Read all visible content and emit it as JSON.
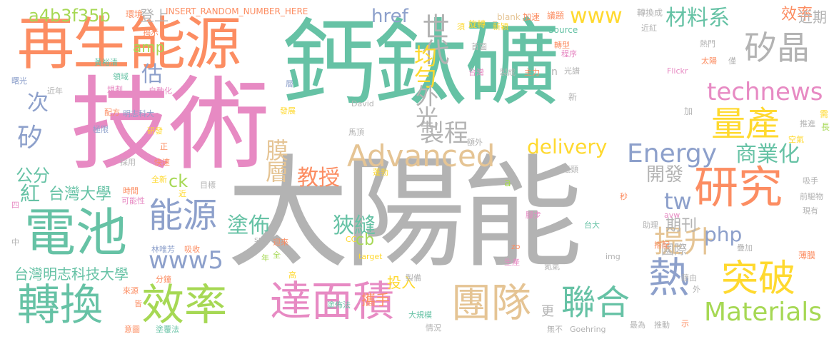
{
  "palette": {
    "gray": "#b3b3b3",
    "green": "#66c2a5",
    "orange": "#fc8d62",
    "blue": "#8da0cb",
    "pink": "#e78ac3",
    "lime": "#a6d854",
    "yellow": "#ffd92f",
    "tan": "#e5c494"
  },
  "words": [
    {
      "text": "鈣鈦礦",
      "color": "green"
    },
    {
      "text": "太陽能",
      "color": "gray"
    },
    {
      "text": "技術",
      "color": "pink"
    },
    {
      "text": "再生能源",
      "color": "orange"
    },
    {
      "text": "電池",
      "color": "green"
    },
    {
      "text": "轉換",
      "color": "green"
    },
    {
      "text": "效率",
      "color": "lime"
    },
    {
      "text": "達面積",
      "color": "pink"
    },
    {
      "text": "團隊",
      "color": "tan"
    },
    {
      "text": "聯合",
      "color": "green"
    },
    {
      "text": "研究",
      "color": "orange"
    },
    {
      "text": "突破",
      "color": "yellow"
    },
    {
      "text": "量產",
      "color": "yellow"
    },
    {
      "text": "矽晶",
      "color": "gray"
    },
    {
      "text": "熱",
      "color": "blue"
    },
    {
      "text": "提升",
      "color": "tan"
    },
    {
      "text": "能源",
      "color": "blue"
    },
    {
      "text": "Advanced",
      "color": "tan"
    },
    {
      "text": "Energy",
      "color": "blue"
    },
    {
      "text": "Materials",
      "color": "lime"
    },
    {
      "text": "technews",
      "color": "pink"
    },
    {
      "text": "delivery",
      "color": "yellow"
    },
    {
      "text": "商業化",
      "color": "green"
    },
    {
      "text": "材料系",
      "color": "green"
    },
    {
      "text": "www",
      "color": "yellow"
    },
    {
      "text": "www5",
      "color": "blue"
    },
    {
      "text": "php",
      "color": "blue"
    },
    {
      "text": "tw",
      "color": "blue"
    },
    {
      "text": "a4b3f35b",
      "color": "lime"
    },
    {
      "text": "世代",
      "color": "gray"
    },
    {
      "text": "均勻",
      "color": "yellow"
    },
    {
      "text": "外光",
      "color": "gray"
    },
    {
      "text": "製程",
      "color": "gray"
    },
    {
      "text": "膜層",
      "color": "tan"
    },
    {
      "text": "開發",
      "color": "gray"
    },
    {
      "text": "教授",
      "color": "orange"
    },
    {
      "text": "塗佈",
      "color": "green"
    },
    {
      "text": "狹縫",
      "color": "green"
    },
    {
      "text": "期刊",
      "color": "gray"
    },
    {
      "text": "國際",
      "color": "gray"
    },
    {
      "text": "台灣大學",
      "color": "green"
    },
    {
      "text": "台灣明志科技大學",
      "color": "green"
    },
    {
      "text": "公分",
      "color": "green"
    },
    {
      "text": "紅",
      "color": "green"
    },
    {
      "text": "矽",
      "color": "blue"
    },
    {
      "text": "次",
      "color": "blue"
    },
    {
      "text": "估",
      "color": "blue"
    },
    {
      "text": "登上",
      "color": "gray"
    },
    {
      "text": "href",
      "color": "blue"
    },
    {
      "text": "amp",
      "color": "lime"
    },
    {
      "text": "ck",
      "color": "lime"
    },
    {
      "text": "cb",
      "color": "lime"
    },
    {
      "text": "效率",
      "color": "orange"
    },
    {
      "text": "近期",
      "color": "gray"
    },
    {
      "text": "投入",
      "color": "yellow"
    },
    {
      "text": "攜手",
      "color": "orange"
    },
    {
      "text": "更",
      "color": "gray"
    },
    {
      "text": "INSERT_RANDOM_NUMBER_HERE",
      "color": "orange"
    },
    {
      "text": "環境",
      "color": "orange"
    },
    {
      "text": "揭示",
      "color": "orange"
    },
    {
      "text": "_blank",
      "color": "tan"
    },
    {
      "text": "旋轉",
      "color": "yellow"
    },
    {
      "text": "轉換成",
      "color": "gray"
    },
    {
      "text": "加速",
      "color": "orange"
    },
    {
      "text": "議題",
      "color": "orange"
    },
    {
      "text": "新穎",
      "color": "yellow"
    },
    {
      "text": "Source",
      "color": "green"
    },
    {
      "text": "近紅",
      "color": "gray"
    },
    {
      "text": "熱門",
      "color": "gray"
    },
    {
      "text": "轉型",
      "color": "orange"
    },
    {
      "text": "程序",
      "color": "pink"
    },
    {
      "text": "太陽",
      "color": "orange"
    },
    {
      "text": "Flickr",
      "color": "pink"
    },
    {
      "text": "僅",
      "color": "gray"
    },
    {
      "text": "台灣",
      "color": "pink"
    },
    {
      "text": "製成",
      "color": "gray"
    },
    {
      "text": "主力",
      "color": "orange"
    },
    {
      "text": "光譜",
      "color": "gray"
    },
    {
      "text": "n",
      "color": "gray"
    },
    {
      "text": "首圖",
      "color": "gray"
    },
    {
      "text": "黃裕清",
      "color": "green"
    },
    {
      "text": "領域",
      "color": "green"
    },
    {
      "text": "曙光",
      "color": "blue"
    },
    {
      "text": "近年",
      "color": "gray"
    },
    {
      "text": "規劃",
      "color": "pink"
    },
    {
      "text": "自動化",
      "color": "pink"
    },
    {
      "text": "層",
      "color": "blue"
    },
    {
      "text": "明志科大",
      "color": "blue"
    },
    {
      "text": "配方",
      "color": "orange"
    },
    {
      "text": "David",
      "color": "gray"
    },
    {
      "text": "發展",
      "color": "yellow"
    },
    {
      "text": "研發",
      "color": "yellow"
    },
    {
      "text": "極限",
      "color": "blue"
    },
    {
      "text": "馬頂",
      "color": "gray"
    },
    {
      "text": "額外",
      "color": "gray"
    },
    {
      "text": "推進",
      "color": "gray"
    },
    {
      "text": "空氣",
      "color": "yellow"
    },
    {
      "text": "需",
      "color": "yellow"
    },
    {
      "text": "長",
      "color": "lime"
    },
    {
      "text": "加",
      "color": "gray"
    },
    {
      "text": "新",
      "color": "gray"
    },
    {
      "text": "正",
      "color": "orange"
    },
    {
      "text": "快速",
      "color": "orange"
    },
    {
      "text": "採用",
      "color": "gray"
    },
    {
      "text": "全新",
      "color": "yellow"
    },
    {
      "text": "蓬勃",
      "color": "yellow"
    },
    {
      "text": "瓶頸",
      "color": "gray"
    },
    {
      "text": "a",
      "color": "lime"
    },
    {
      "text": "目標",
      "color": "gray"
    },
    {
      "text": "時間",
      "color": "orange"
    },
    {
      "text": "可能性",
      "color": "pink"
    },
    {
      "text": "吸手",
      "color": "gray"
    },
    {
      "text": "前驅物",
      "color": "gray"
    },
    {
      "text": "四",
      "color": "pink"
    },
    {
      "text": "近",
      "color": "yellow"
    },
    {
      "text": "秒",
      "color": "orange"
    },
    {
      "text": "腳步",
      "color": "pink"
    },
    {
      "text": "avw",
      "color": "pink"
    },
    {
      "text": "現有",
      "color": "gray"
    },
    {
      "text": "台大",
      "color": "green"
    },
    {
      "text": "助理",
      "color": "gray"
    },
    {
      "text": "中",
      "color": "gray"
    },
    {
      "text": "林唯芳",
      "color": "blue"
    },
    {
      "text": "吸收",
      "color": "orange"
    },
    {
      "text": "src",
      "color": "gray"
    },
    {
      "text": "迎來",
      "color": "orange"
    },
    {
      "text": "CC",
      "color": "yellow"
    },
    {
      "text": "zo",
      "color": "orange"
    },
    {
      "text": "target",
      "color": "yellow"
    },
    {
      "text": "img",
      "color": "gray"
    },
    {
      "text": "搭配",
      "color": "orange"
    },
    {
      "text": "疊加",
      "color": "gray"
    },
    {
      "text": "薄膜",
      "color": "orange"
    },
    {
      "text": "年",
      "color": "lime"
    },
    {
      "text": "全",
      "color": "lime"
    },
    {
      "text": "生產",
      "color": "pink"
    },
    {
      "text": "氮氣",
      "color": "gray"
    },
    {
      "text": "分鐘",
      "color": "orange"
    },
    {
      "text": "藉由",
      "color": "gray"
    },
    {
      "text": "外",
      "color": "gray"
    },
    {
      "text": "來源",
      "color": "orange"
    },
    {
      "text": "高",
      "color": "yellow"
    },
    {
      "text": "製備",
      "color": "gray"
    },
    {
      "text": "皆",
      "color": "orange"
    },
    {
      "text": "塗佈法",
      "color": "green"
    },
    {
      "text": "大規模",
      "color": "green"
    },
    {
      "text": "意圖",
      "color": "orange"
    },
    {
      "text": "塗覆法",
      "color": "green"
    },
    {
      "text": "情況",
      "color": "gray"
    },
    {
      "text": "無不",
      "color": "gray"
    },
    {
      "text": "Goehring",
      "color": "gray"
    },
    {
      "text": "最為",
      "color": "gray"
    },
    {
      "text": "推動",
      "color": "gray"
    },
    {
      "text": "示",
      "color": "orange"
    },
    {
      "text": "須",
      "color": "yellow"
    }
  ]
}
